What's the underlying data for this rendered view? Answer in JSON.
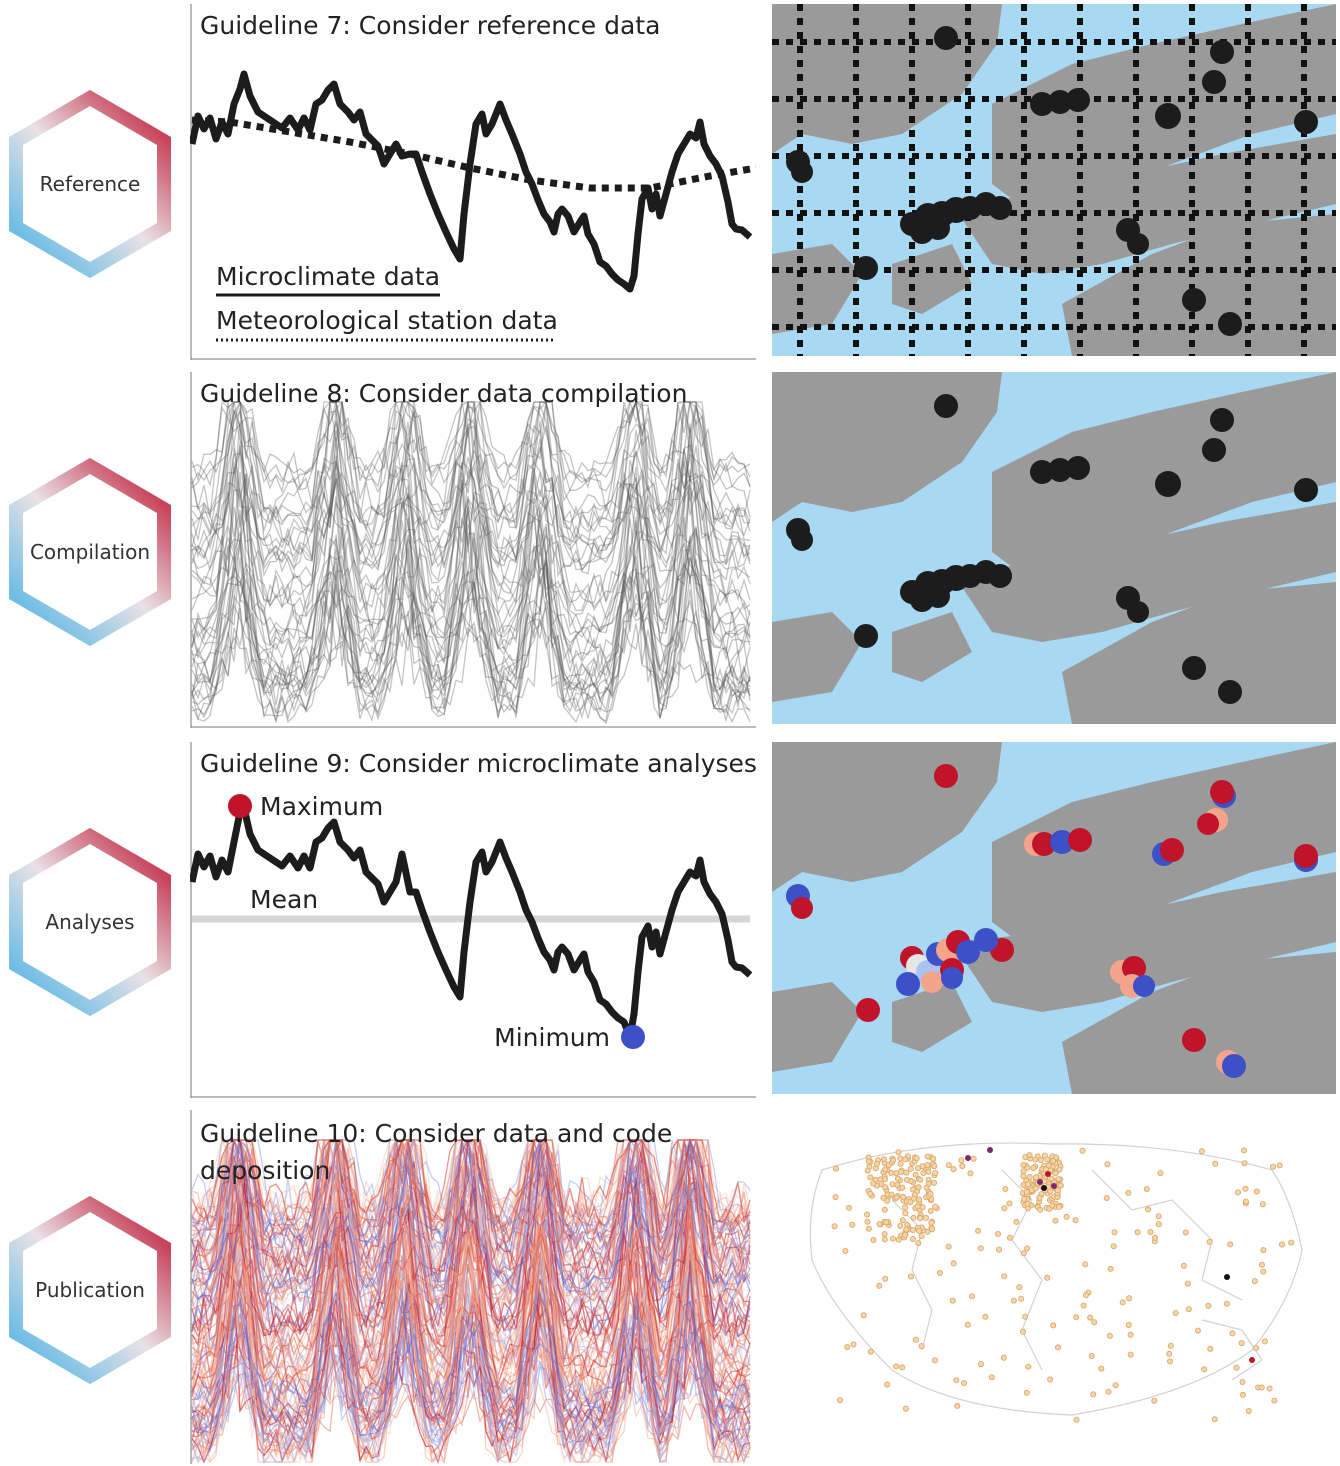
{
  "rows": [
    {
      "hex_label": "Reference",
      "title": "Guideline 7: Consider reference data",
      "legend_solid": "Microclimate data",
      "legend_dotted": "Meteorological station data"
    },
    {
      "hex_label": "Compilation",
      "title": "Guideline 8: Consider data compilation"
    },
    {
      "hex_label": "Analyses",
      "title": "Guideline 9: Consider microclimate analyses",
      "max_label": "Maximum",
      "mean_label": "Mean",
      "min_label": "Minimum"
    },
    {
      "hex_label": "Publication",
      "title_line1": "Guideline 10: Consider data and code",
      "title_line2": "deposition"
    }
  ],
  "colors": {
    "hex_red": "#c8445c",
    "hex_blue": "#6fbde6",
    "line": "#1c1c1c",
    "water": "#a8d8f2",
    "land": "#9a9a9a",
    "max_red": "#c0142a",
    "min_blue": "#3c50c8",
    "mean_gray": "#d6d6d6",
    "salmon": "#f4a48a"
  }
}
